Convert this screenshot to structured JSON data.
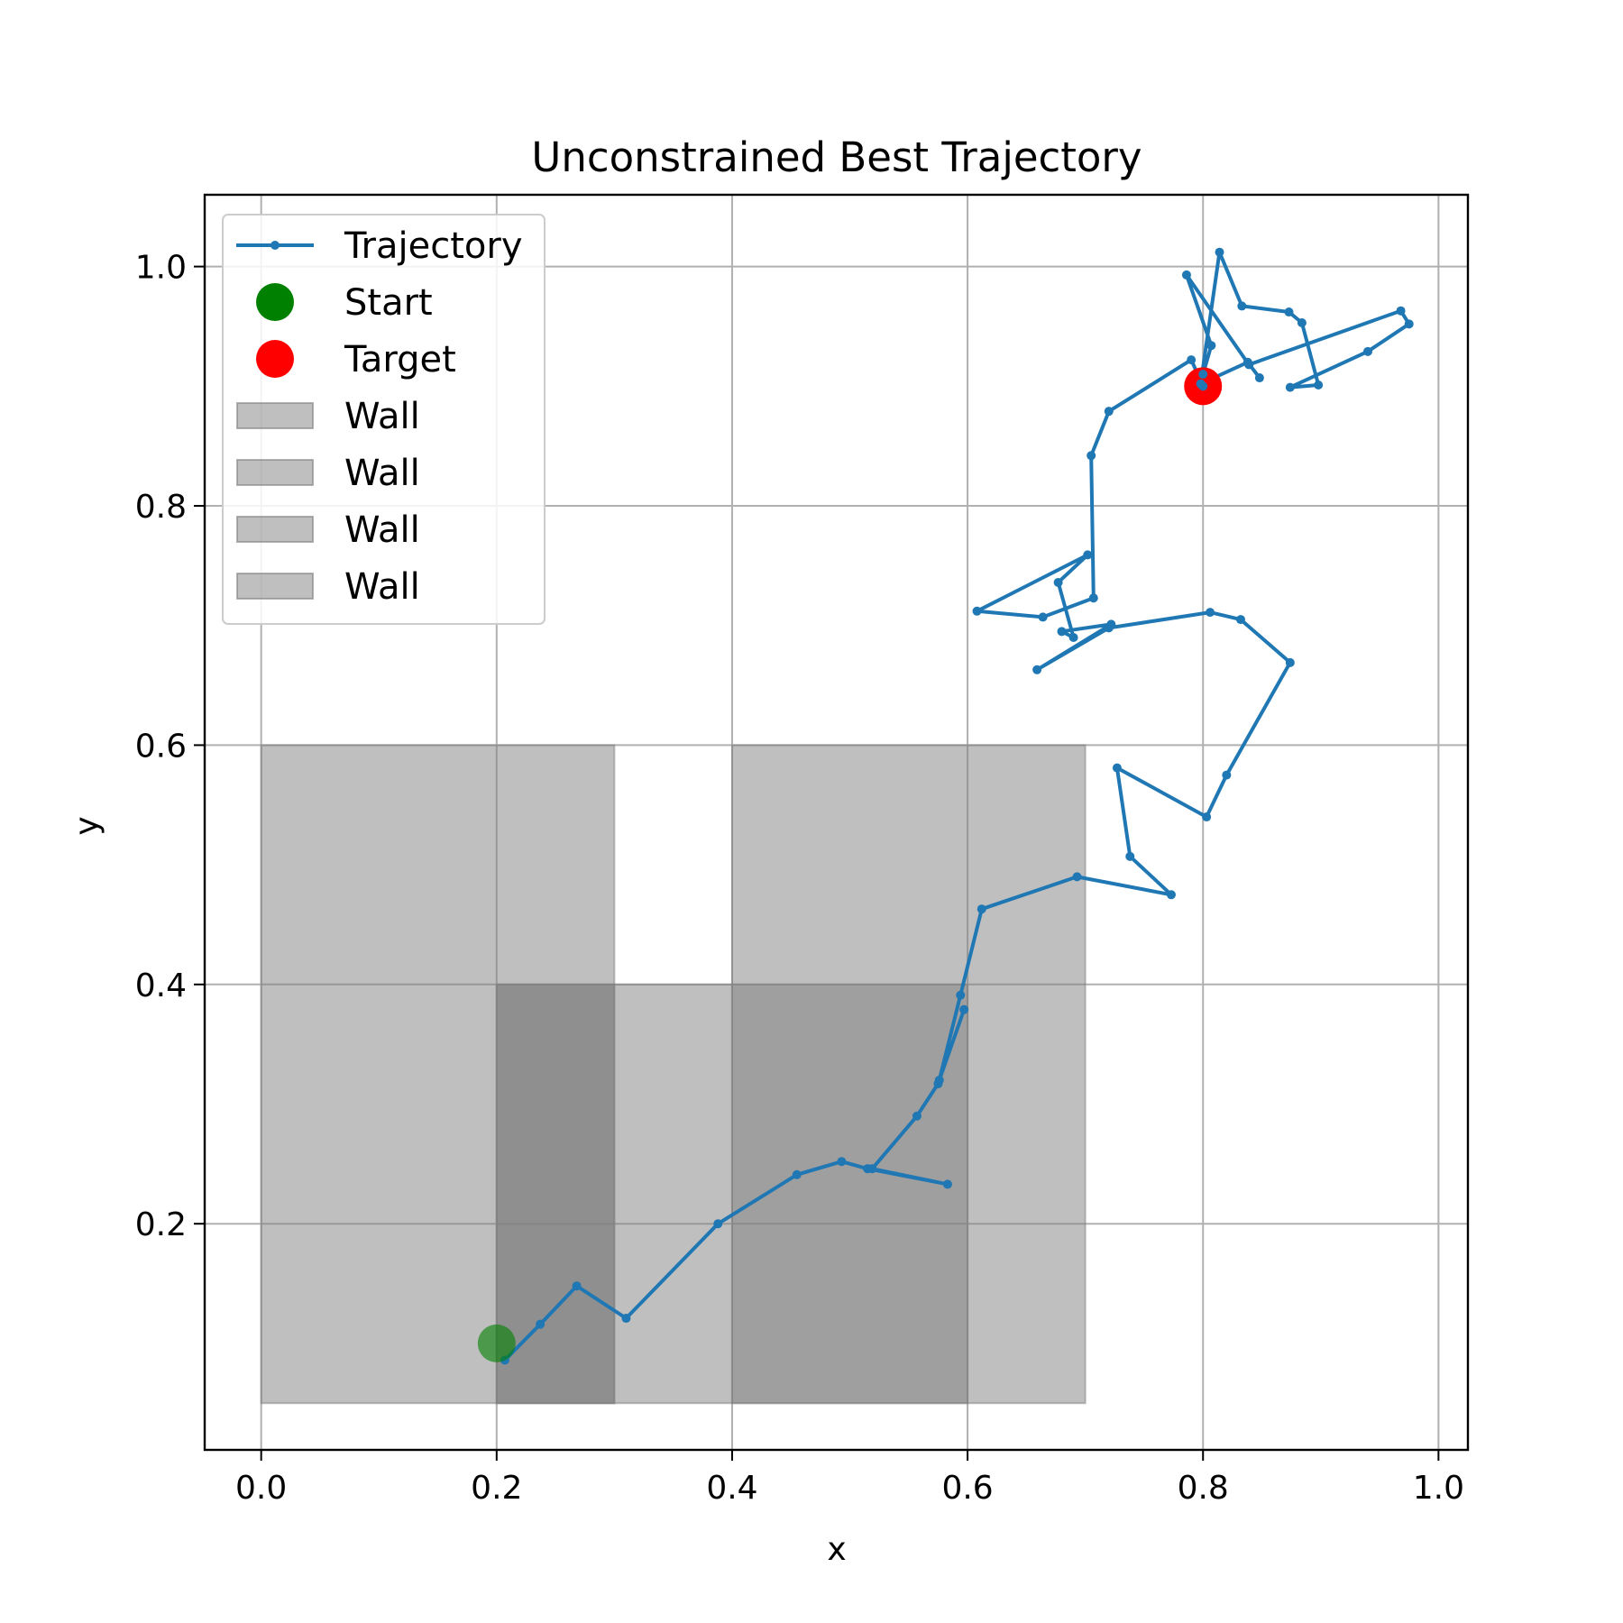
{
  "chart_data": {
    "type": "line",
    "title": "Unconstrained Best Trajectory",
    "xlabel": "x",
    "ylabel": "y",
    "xlim": [
      -0.048,
      1.025
    ],
    "ylim": [
      0.011,
      1.06
    ],
    "xticks": [
      0.0,
      0.2,
      0.4,
      0.6,
      0.8,
      1.0
    ],
    "yticks": [
      0.2,
      0.4,
      0.6,
      0.8,
      1.0
    ],
    "xtick_labels": [
      "0.0",
      "0.2",
      "0.4",
      "0.6",
      "0.8",
      "1.0"
    ],
    "ytick_labels": [
      "0.2",
      "0.4",
      "0.6",
      "0.8",
      "1.0"
    ],
    "grid": true,
    "legend_position": "upper-left",
    "colors": {
      "trajectory": "#1f77b4",
      "start": "#008000",
      "target": "#ff0000",
      "wall": "#808080"
    },
    "walls": [
      {
        "name": "Wall",
        "x0": 0.0,
        "x1": 0.3,
        "y0": 0.05,
        "y1": 0.6
      },
      {
        "name": "Wall",
        "x0": 0.2,
        "x1": 0.6,
        "y0": 0.05,
        "y1": 0.4
      },
      {
        "name": "Wall",
        "x0": 0.4,
        "x1": 0.7,
        "y0": 0.05,
        "y1": 0.6
      },
      {
        "name": "Wall",
        "x0": 0.2,
        "x1": 0.3,
        "y0": 0.05,
        "y1": 0.4
      }
    ],
    "start": {
      "name": "Start",
      "x": 0.2,
      "y": 0.1
    },
    "target": {
      "name": "Target",
      "x": 0.8,
      "y": 0.9
    },
    "series": [
      {
        "name": "Trajectory",
        "points": [
          [
            0.207,
            0.086
          ],
          [
            0.237,
            0.116
          ],
          [
            0.268,
            0.148
          ],
          [
            0.31,
            0.121
          ],
          [
            0.388,
            0.2
          ],
          [
            0.455,
            0.241
          ],
          [
            0.493,
            0.252
          ],
          [
            0.515,
            0.246
          ],
          [
            0.583,
            0.233
          ],
          [
            0.519,
            0.246
          ],
          [
            0.557,
            0.29
          ],
          [
            0.575,
            0.317
          ],
          [
            0.597,
            0.379
          ],
          [
            0.576,
            0.32
          ],
          [
            0.594,
            0.391
          ],
          [
            0.612,
            0.463
          ],
          [
            0.693,
            0.49
          ],
          [
            0.773,
            0.475
          ],
          [
            0.738,
            0.507
          ],
          [
            0.727,
            0.581
          ],
          [
            0.803,
            0.54
          ],
          [
            0.82,
            0.575
          ],
          [
            0.874,
            0.669
          ],
          [
            0.832,
            0.705
          ],
          [
            0.806,
            0.711
          ],
          [
            0.72,
            0.698
          ],
          [
            0.659,
            0.663
          ],
          [
            0.722,
            0.701
          ],
          [
            0.68,
            0.695
          ],
          [
            0.69,
            0.69
          ],
          [
            0.677,
            0.736
          ],
          [
            0.702,
            0.759
          ],
          [
            0.608,
            0.712
          ],
          [
            0.664,
            0.707
          ],
          [
            0.707,
            0.723
          ],
          [
            0.705,
            0.842
          ],
          [
            0.72,
            0.879
          ],
          [
            0.79,
            0.922
          ],
          [
            0.8,
            0.9
          ],
          [
            0.8,
            0.91
          ],
          [
            0.807,
            0.934
          ],
          [
            0.786,
            0.993
          ],
          [
            0.839,
            0.918
          ],
          [
            0.968,
            0.963
          ],
          [
            0.975,
            0.952
          ],
          [
            0.94,
            0.929
          ],
          [
            0.874,
            0.899
          ],
          [
            0.898,
            0.901
          ],
          [
            0.884,
            0.953
          ],
          [
            0.873,
            0.962
          ],
          [
            0.833,
            0.967
          ],
          [
            0.814,
            1.012
          ],
          [
            0.798,
            0.902
          ],
          [
            0.838,
            0.92
          ],
          [
            0.848,
            0.907
          ]
        ]
      }
    ]
  }
}
